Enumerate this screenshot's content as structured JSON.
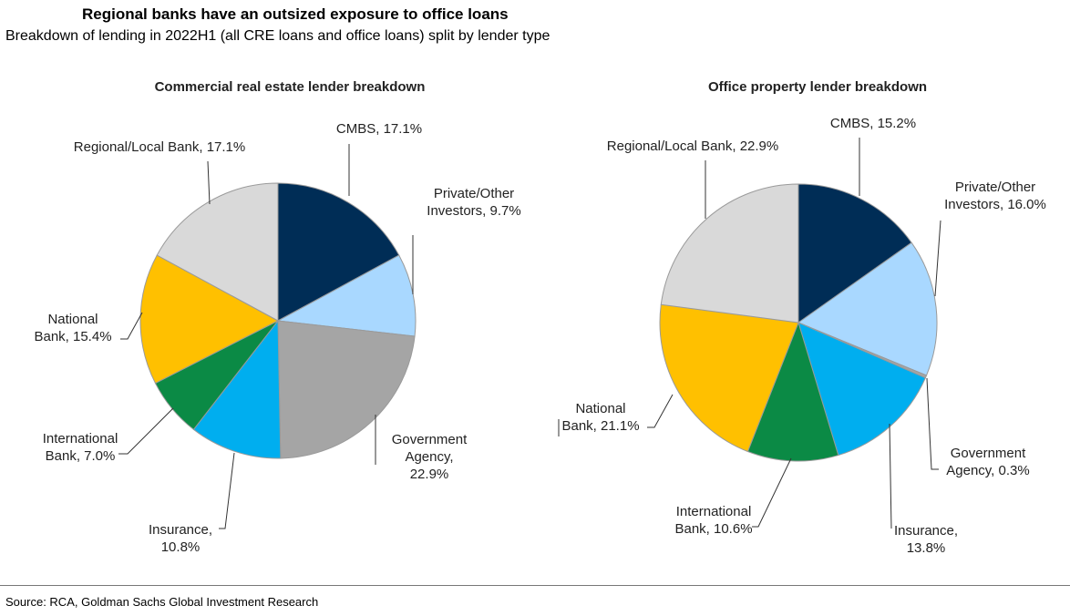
{
  "header": {
    "title": "Regional banks have an outsized exposure to office loans",
    "subtitle": "Breakdown of lending in 2022H1 (all CRE loans and office loans) split by lender type"
  },
  "footer": {
    "source": "Source: RCA, Goldman Sachs Global Investment Research"
  },
  "chart_data": [
    {
      "type": "pie",
      "title": "Commercial real estate lender breakdown",
      "slices": [
        {
          "label": [
            "CMBS, 17.1%"
          ],
          "value": 17.1,
          "color": "#002D56"
        },
        {
          "label": [
            "Private/Other",
            "Investors, 9.7%"
          ],
          "value": 9.7,
          "color": "#A9D8FF"
        },
        {
          "label": [
            "Government",
            "Agency,",
            "22.9%"
          ],
          "value": 22.9,
          "color": "#A5A5A5"
        },
        {
          "label": [
            "Insurance,",
            "10.8%"
          ],
          "value": 10.8,
          "color": "#00AEEF"
        },
        {
          "label": [
            "International",
            "Bank, 7.0%"
          ],
          "value": 7.0,
          "color": "#0B8A45"
        },
        {
          "label": [
            "National",
            "Bank, 15.4%"
          ],
          "value": 15.4,
          "color": "#FFC000"
        },
        {
          "label": [
            "Regional/Local Bank, 17.1%"
          ],
          "value": 17.1,
          "color": "#D9D9D9"
        }
      ]
    },
    {
      "type": "pie",
      "title": "Office property lender breakdown",
      "slices": [
        {
          "label": [
            "CMBS, 15.2%"
          ],
          "value": 15.2,
          "color": "#002D56"
        },
        {
          "label": [
            "Private/Other",
            "Investors, 16.0%"
          ],
          "value": 16.0,
          "color": "#A9D8FF"
        },
        {
          "label": [
            "Government",
            "Agency, 0.3%"
          ],
          "value": 0.3,
          "color": "#A5A5A5"
        },
        {
          "label": [
            "Insurance,",
            "13.8%"
          ],
          "value": 13.8,
          "color": "#00AEEF"
        },
        {
          "label": [
            "International",
            "Bank, 10.6%"
          ],
          "value": 10.6,
          "color": "#0B8A45"
        },
        {
          "label": [
            "National",
            "Bank, 21.1%"
          ],
          "value": 21.1,
          "color": "#FFC000"
        },
        {
          "label": [
            "Regional/Local Bank, 22.9%"
          ],
          "value": 22.9,
          "color": "#D9D9D9"
        }
      ]
    }
  ]
}
